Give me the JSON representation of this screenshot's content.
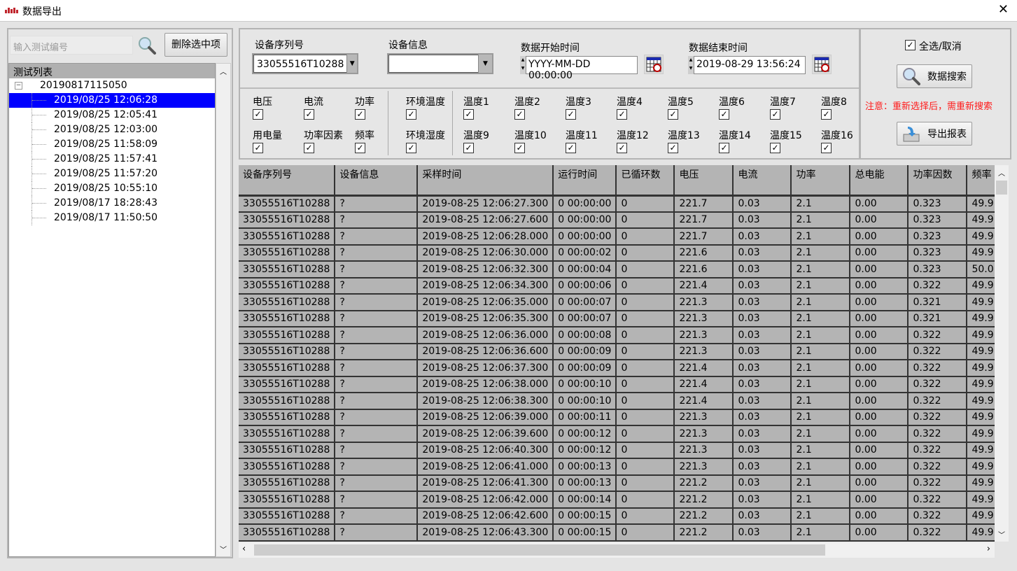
{
  "window": {
    "title": "数据导出",
    "close_icon": "close-icon"
  },
  "left": {
    "search_placeholder": "输入测试编号",
    "delete_label": "删除选中项",
    "tree_header": "测试列表",
    "root": "20190817115050",
    "items": [
      "2019/08/25 12:06:28",
      "2019/08/25 12:05:41",
      "2019/08/25 12:03:00",
      "2019/08/25 11:58:09",
      "2019/08/25 11:57:41",
      "2019/08/25 11:57:20",
      "2019/08/25 10:55:10",
      "2019/08/17 18:28:43",
      "2019/08/17 11:50:50"
    ],
    "selected_index": 0
  },
  "filters": {
    "serial_label": "设备序列号",
    "serial_value": "33055516T10288",
    "info_label": "设备信息",
    "info_value": "",
    "start_label": "数据开始时间",
    "start_value": "YYYY-MM-DD 00:00:00",
    "end_label": "数据结束时间",
    "end_value": "2019-08-29 13:56:24",
    "checkboxes": [
      {
        "label": "电压",
        "checked": true
      },
      {
        "label": "电流",
        "checked": true
      },
      {
        "label": "功率",
        "checked": true
      },
      {
        "label": "环境温度",
        "checked": true
      },
      {
        "label": "温度1",
        "checked": true
      },
      {
        "label": "温度2",
        "checked": true
      },
      {
        "label": "温度3",
        "checked": true
      },
      {
        "label": "温度4",
        "checked": true
      },
      {
        "label": "温度5",
        "checked": true
      },
      {
        "label": "温度6",
        "checked": true
      },
      {
        "label": "温度7",
        "checked": true
      },
      {
        "label": "温度8",
        "checked": true
      },
      {
        "label": "用电量",
        "checked": true
      },
      {
        "label": "功率因素",
        "checked": true
      },
      {
        "label": "频率",
        "checked": true
      },
      {
        "label": "环境湿度",
        "checked": true
      },
      {
        "label": "温度9",
        "checked": true
      },
      {
        "label": "温度10",
        "checked": true
      },
      {
        "label": "温度11",
        "checked": true
      },
      {
        "label": "温度12",
        "checked": true
      },
      {
        "label": "温度13",
        "checked": true
      },
      {
        "label": "温度14",
        "checked": true
      },
      {
        "label": "温度15",
        "checked": true
      },
      {
        "label": "温度16",
        "checked": true
      }
    ]
  },
  "side": {
    "select_all_label": "全选/取消",
    "select_all_checked": true,
    "search_label": "数据搜索",
    "warning": "注意：重新选择后，需重新搜索",
    "export_label": "导出报表"
  },
  "colors": {
    "selection": "#0000ff",
    "warning": "#ff1a1a",
    "grid_bg": "#b4b4b4"
  },
  "table": {
    "columns": [
      "设备序列号",
      "设备信息",
      "采样时间",
      "运行时间",
      "已循环数",
      "电压",
      "电流",
      "功率",
      "总电能",
      "功率因数",
      "频率"
    ],
    "rows": [
      [
        "33055516T10288",
        "?",
        "2019-08-25 12:06:27.300",
        "0 00:00:00",
        "0",
        "221.7",
        "0.03",
        "2.1",
        "0.00",
        "0.323",
        "49.9"
      ],
      [
        "33055516T10288",
        "?",
        "2019-08-25 12:06:27.600",
        "0 00:00:00",
        "0",
        "221.7",
        "0.03",
        "2.1",
        "0.00",
        "0.323",
        "49.9"
      ],
      [
        "33055516T10288",
        "?",
        "2019-08-25 12:06:28.000",
        "0 00:00:00",
        "0",
        "221.7",
        "0.03",
        "2.1",
        "0.00",
        "0.323",
        "49.9"
      ],
      [
        "33055516T10288",
        "?",
        "2019-08-25 12:06:30.000",
        "0 00:00:02",
        "0",
        "221.6",
        "0.03",
        "2.1",
        "0.00",
        "0.323",
        "49.9"
      ],
      [
        "33055516T10288",
        "?",
        "2019-08-25 12:06:32.300",
        "0 00:00:04",
        "0",
        "221.6",
        "0.03",
        "2.1",
        "0.00",
        "0.323",
        "50.0"
      ],
      [
        "33055516T10288",
        "?",
        "2019-08-25 12:06:34.300",
        "0 00:00:06",
        "0",
        "221.4",
        "0.03",
        "2.1",
        "0.00",
        "0.322",
        "49.9"
      ],
      [
        "33055516T10288",
        "?",
        "2019-08-25 12:06:35.000",
        "0 00:00:07",
        "0",
        "221.3",
        "0.03",
        "2.1",
        "0.00",
        "0.321",
        "49.9"
      ],
      [
        "33055516T10288",
        "?",
        "2019-08-25 12:06:35.300",
        "0 00:00:07",
        "0",
        "221.3",
        "0.03",
        "2.1",
        "0.00",
        "0.321",
        "49.9"
      ],
      [
        "33055516T10288",
        "?",
        "2019-08-25 12:06:36.000",
        "0 00:00:08",
        "0",
        "221.3",
        "0.03",
        "2.1",
        "0.00",
        "0.322",
        "49.9"
      ],
      [
        "33055516T10288",
        "?",
        "2019-08-25 12:06:36.600",
        "0 00:00:09",
        "0",
        "221.3",
        "0.03",
        "2.1",
        "0.00",
        "0.322",
        "49.9"
      ],
      [
        "33055516T10288",
        "?",
        "2019-08-25 12:06:37.300",
        "0 00:00:09",
        "0",
        "221.4",
        "0.03",
        "2.1",
        "0.00",
        "0.322",
        "49.9"
      ],
      [
        "33055516T10288",
        "?",
        "2019-08-25 12:06:38.000",
        "0 00:00:10",
        "0",
        "221.4",
        "0.03",
        "2.1",
        "0.00",
        "0.322",
        "49.9"
      ],
      [
        "33055516T10288",
        "?",
        "2019-08-25 12:06:38.300",
        "0 00:00:10",
        "0",
        "221.4",
        "0.03",
        "2.1",
        "0.00",
        "0.322",
        "49.9"
      ],
      [
        "33055516T10288",
        "?",
        "2019-08-25 12:06:39.000",
        "0 00:00:11",
        "0",
        "221.3",
        "0.03",
        "2.1",
        "0.00",
        "0.322",
        "49.9"
      ],
      [
        "33055516T10288",
        "?",
        "2019-08-25 12:06:39.600",
        "0 00:00:12",
        "0",
        "221.3",
        "0.03",
        "2.1",
        "0.00",
        "0.322",
        "49.9"
      ],
      [
        "33055516T10288",
        "?",
        "2019-08-25 12:06:40.300",
        "0 00:00:12",
        "0",
        "221.3",
        "0.03",
        "2.1",
        "0.00",
        "0.322",
        "49.9"
      ],
      [
        "33055516T10288",
        "?",
        "2019-08-25 12:06:41.000",
        "0 00:00:13",
        "0",
        "221.3",
        "0.03",
        "2.1",
        "0.00",
        "0.322",
        "49.9"
      ],
      [
        "33055516T10288",
        "?",
        "2019-08-25 12:06:41.300",
        "0 00:00:13",
        "0",
        "221.2",
        "0.03",
        "2.1",
        "0.00",
        "0.322",
        "49.9"
      ],
      [
        "33055516T10288",
        "?",
        "2019-08-25 12:06:42.000",
        "0 00:00:14",
        "0",
        "221.2",
        "0.03",
        "2.1",
        "0.00",
        "0.322",
        "49.9"
      ],
      [
        "33055516T10288",
        "?",
        "2019-08-25 12:06:42.600",
        "0 00:00:15",
        "0",
        "221.2",
        "0.03",
        "2.1",
        "0.00",
        "0.322",
        "49.9"
      ],
      [
        "33055516T10288",
        "?",
        "2019-08-25 12:06:43.300",
        "0 00:00:15",
        "0",
        "221.2",
        "0.03",
        "2.1",
        "0.00",
        "0.322",
        "49.9"
      ]
    ]
  }
}
